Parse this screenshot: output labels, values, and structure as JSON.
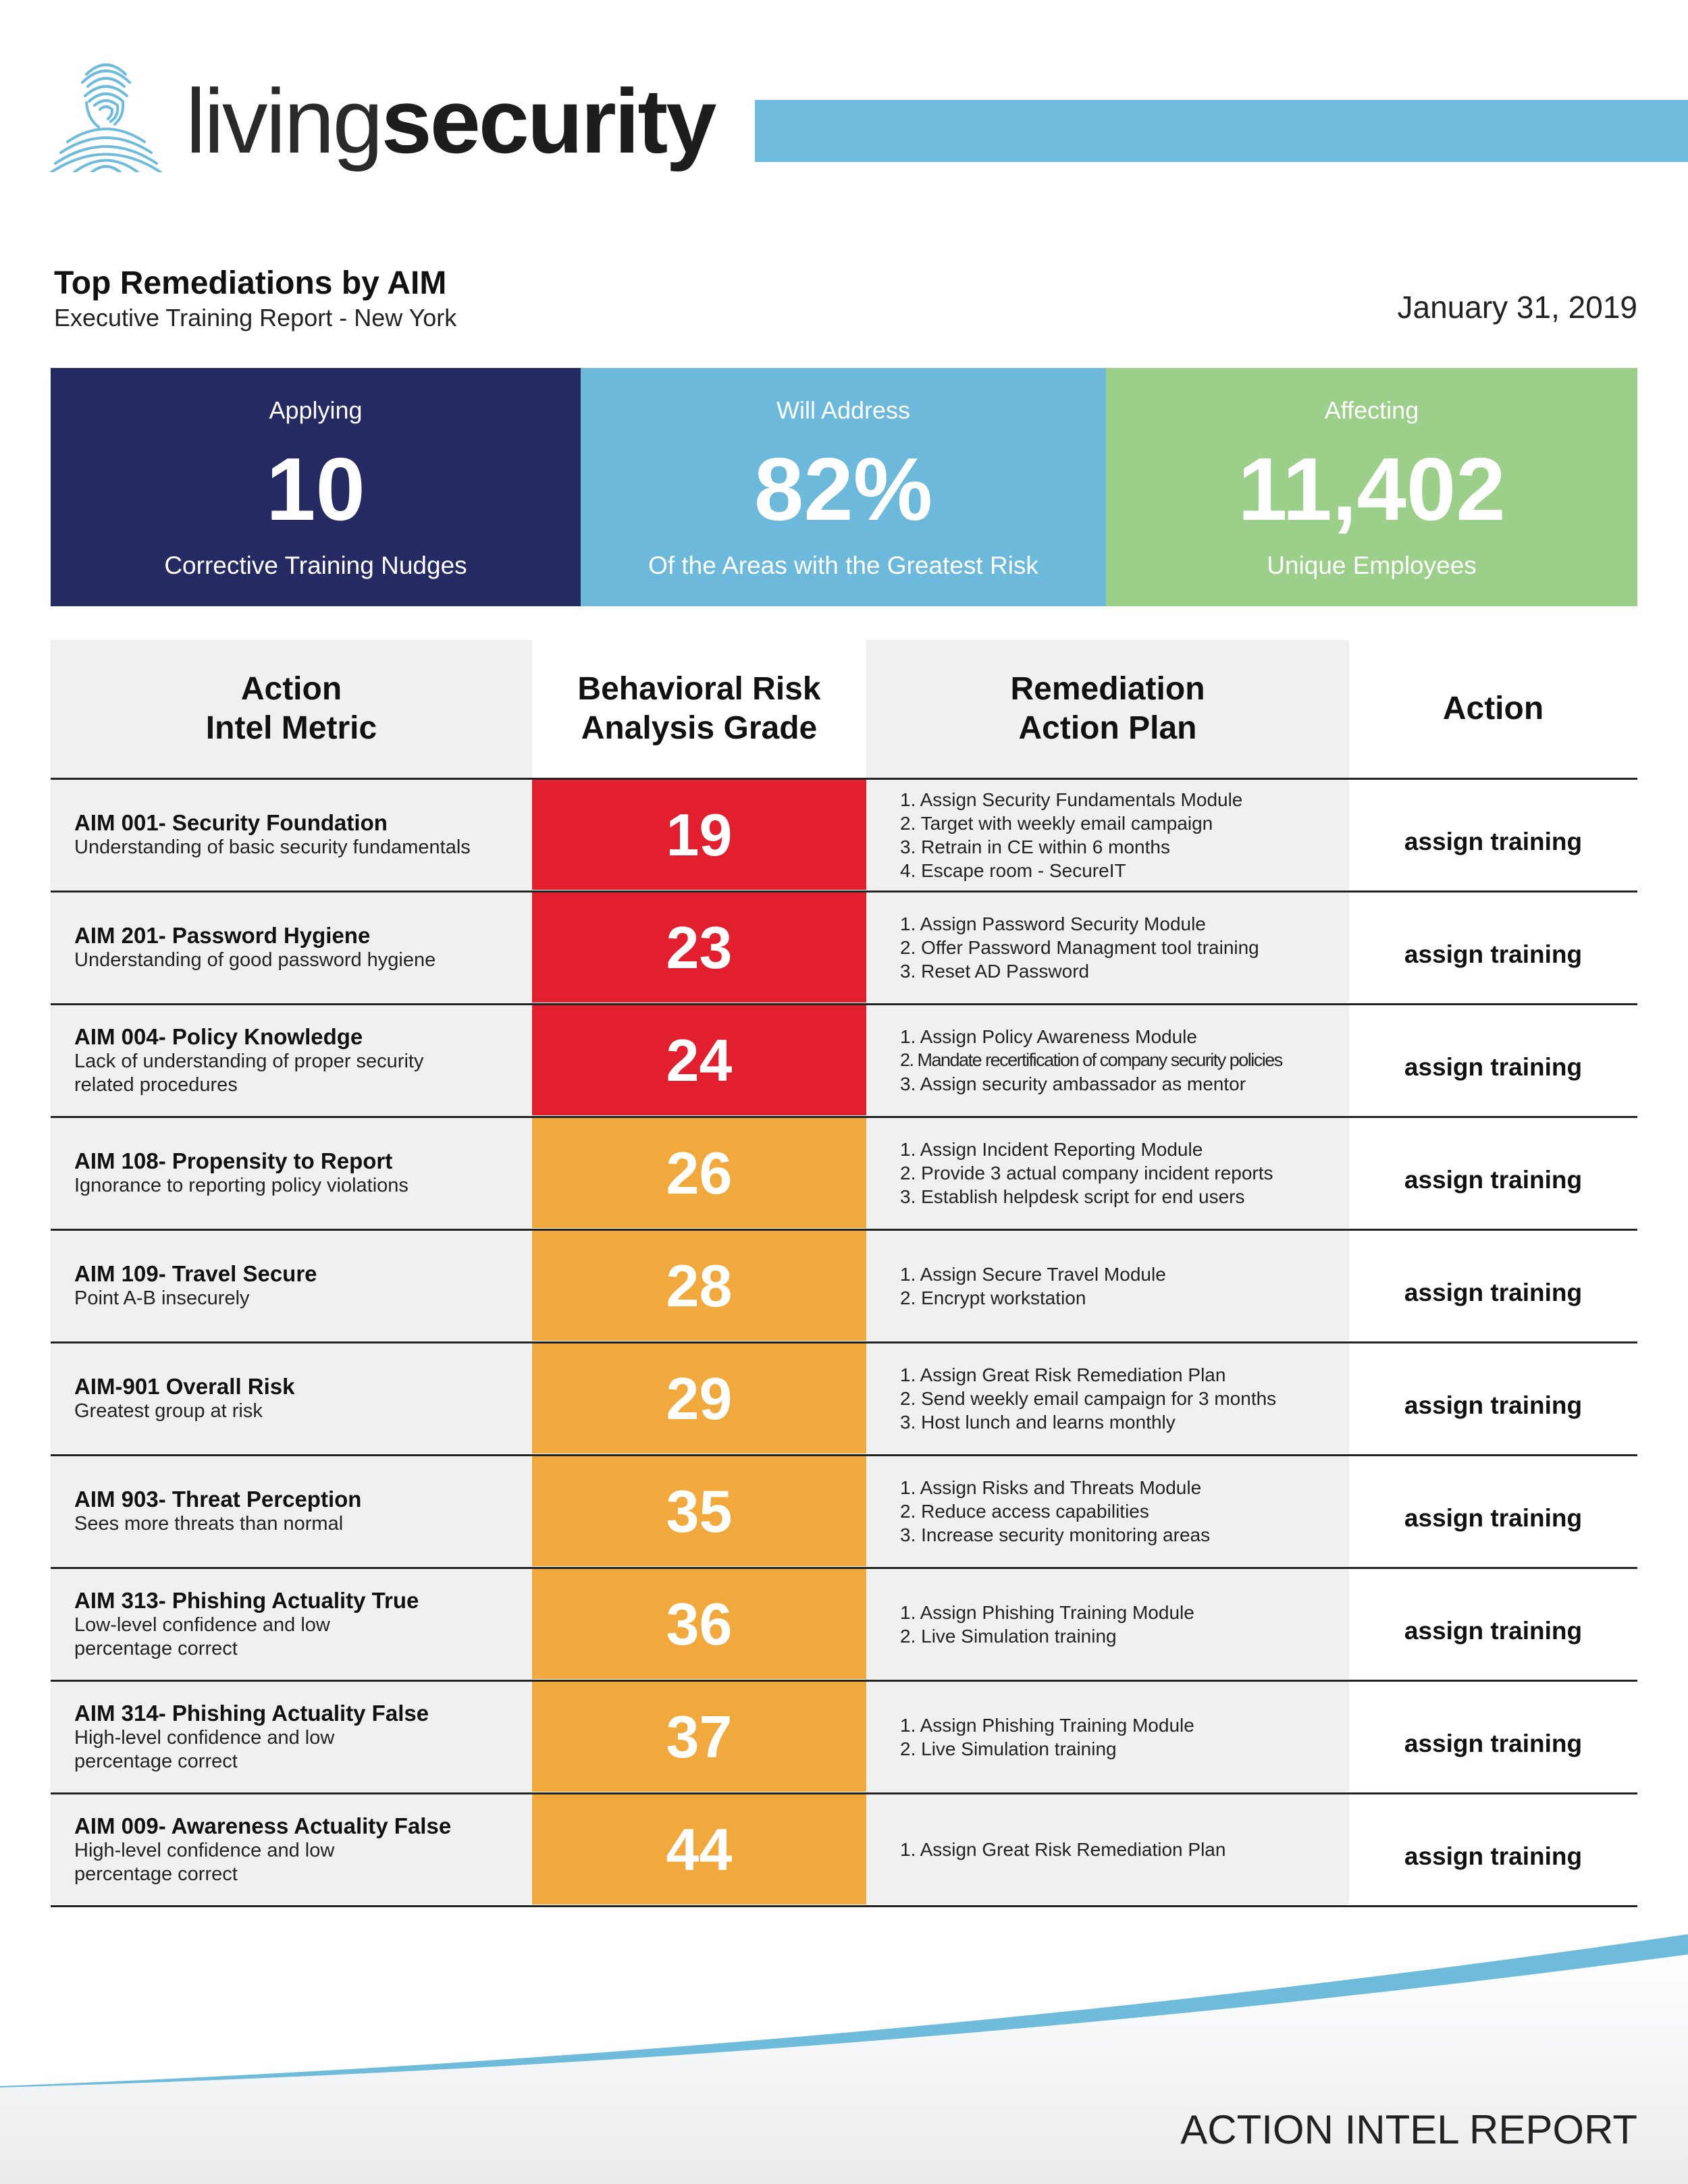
{
  "brand": {
    "name_light": "living",
    "name_bold": "security",
    "logo_icon": "fingerprint-person-icon",
    "accent": "#6ebbdb"
  },
  "report": {
    "title": "Top Remediations by AIM",
    "subtitle": "Executive Training Report - New York",
    "date": "January 31, 2019"
  },
  "stats": [
    {
      "label": "Applying",
      "value": "10",
      "caption": "Corrective Training Nudges",
      "color": "#262a62"
    },
    {
      "label": "Will Address",
      "value": "82%",
      "caption": "Of the Areas with the Greatest Risk",
      "color": "#6cb9dc"
    },
    {
      "label": "Affecting",
      "value": "11,402",
      "caption": "Unique Employees",
      "color": "#9ccf8a"
    }
  ],
  "table": {
    "headers": [
      "Action\nIntel Metric",
      "Behavioral Risk\nAnalysis Grade",
      "Remediation\nAction Plan",
      "Action"
    ],
    "rows": [
      {
        "metric": "AIM 001- Security Foundation",
        "description": "Understanding of basic security fundamentals",
        "grade": "19",
        "level": "red",
        "plan": [
          "1. Assign Security Fundamentals Module",
          "2. Target with weekly email campaign",
          "3. Retrain in CE within 6 months",
          "4. Escape room - SecureIT"
        ],
        "action": "assign training"
      },
      {
        "metric": "AIM 201- Password Hygiene",
        "description": "Understanding of good password hygiene",
        "grade": "23",
        "level": "red",
        "plan": [
          "1. Assign Password Security Module",
          "2. Offer Password Managment tool training",
          "3. Reset AD Password"
        ],
        "action": "assign training"
      },
      {
        "metric": "AIM 004- Policy Knowledge",
        "description": "Lack of understanding of proper security\nrelated procedures",
        "grade": "24",
        "level": "red",
        "plan": [
          "1. Assign Policy Awareness Module",
          "2. Mandate recertification of company security policies",
          "3. Assign security ambassador as mentor"
        ],
        "action": "assign training"
      },
      {
        "metric": "AIM 108- Propensity to Report",
        "description": "Ignorance to reporting policy violations",
        "grade": "26",
        "level": "orange",
        "plan": [
          "1. Assign Incident Reporting Module",
          "2. Provide 3 actual company incident reports",
          "3. Establish helpdesk script for end users"
        ],
        "action": "assign training"
      },
      {
        "metric": "AIM 109- Travel Secure",
        "description": "Point A-B insecurely",
        "grade": "28",
        "level": "orange",
        "plan": [
          "1. Assign Secure Travel Module",
          "2. Encrypt workstation"
        ],
        "action": "assign training"
      },
      {
        "metric": "AIM-901 Overall Risk",
        "description": "Greatest group at risk",
        "grade": "29",
        "level": "orange",
        "plan": [
          "1. Assign Great Risk Remediation Plan",
          "2. Send weekly email campaign for 3 months",
          "3. Host lunch and learns monthly"
        ],
        "action": "assign training"
      },
      {
        "metric": "AIM 903- Threat Perception",
        "description": "Sees more threats than normal",
        "grade": "35",
        "level": "orange",
        "plan": [
          "1. Assign Risks and Threats Module",
          "2. Reduce access capabilities",
          "3. Increase security monitoring areas"
        ],
        "action": "assign training"
      },
      {
        "metric": "AIM 313- Phishing Actuality True",
        "description": "Low-level confidence and low\npercentage correct",
        "grade": "36",
        "level": "orange",
        "plan": [
          "1. Assign Phishing Training Module",
          "2. Live Simulation training"
        ],
        "action": "assign training"
      },
      {
        "metric": "AIM 314- Phishing Actuality False",
        "description": "High-level confidence and low\npercentage correct",
        "grade": "37",
        "level": "orange",
        "plan": [
          "1. Assign Phishing Training Module",
          "2. Live Simulation training"
        ],
        "action": "assign training"
      },
      {
        "metric": "AIM 009- Awareness Actuality False",
        "description": "High-level confidence and low\npercentage correct",
        "grade": "44",
        "level": "orange",
        "plan": [
          "1. Assign Great Risk Remediation Plan"
        ],
        "action": "assign training"
      }
    ],
    "grade_colors": {
      "red": "#e21f2e",
      "orange": "#f1a93e"
    }
  },
  "footer": {
    "title": "ACTION INTEL REPORT"
  }
}
